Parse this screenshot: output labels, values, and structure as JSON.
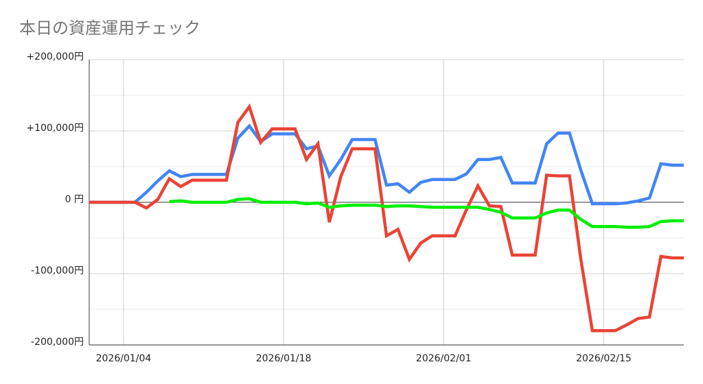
{
  "chart_data": {
    "type": "line",
    "title": "本日の資産運用チェック",
    "x": [
      "2026/01/01",
      "2026/01/02",
      "2026/01/03",
      "2026/01/04",
      "2026/01/05",
      "2026/01/06",
      "2026/01/07",
      "2026/01/08",
      "2026/01/09",
      "2026/01/10",
      "2026/01/11",
      "2026/01/12",
      "2026/01/13",
      "2026/01/14",
      "2026/01/15",
      "2026/01/16",
      "2026/01/17",
      "2026/01/18",
      "2026/01/19",
      "2026/01/20",
      "2026/01/21",
      "2026/01/22",
      "2026/01/23",
      "2026/01/24",
      "2026/01/25",
      "2026/01/26",
      "2026/01/27",
      "2026/01/28",
      "2026/01/29",
      "2026/01/30",
      "2026/01/31",
      "2026/02/01",
      "2026/02/02",
      "2026/02/03",
      "2026/02/04",
      "2026/02/05",
      "2026/02/06",
      "2026/02/07",
      "2026/02/08",
      "2026/02/09",
      "2026/02/10",
      "2026/02/11",
      "2026/02/12",
      "2026/02/13",
      "2026/02/14",
      "2026/02/15",
      "2026/02/16",
      "2026/02/17",
      "2026/02/18",
      "2026/02/19",
      "2026/02/20",
      "2026/02/21",
      "2026/02/22"
    ],
    "xticks": [
      "2026/01/04",
      "2026/01/18",
      "2026/02/01",
      "2026/02/15"
    ],
    "series": [
      {
        "color": "#4285f4",
        "values": [
          0,
          0,
          0,
          0,
          0,
          14000,
          30000,
          44000,
          36000,
          39000,
          39000,
          39000,
          39000,
          90000,
          107000,
          85000,
          96000,
          96000,
          96000,
          75000,
          79000,
          37000,
          60000,
          88000,
          88000,
          88000,
          24000,
          26000,
          14000,
          28000,
          32000,
          32000,
          32000,
          40000,
          60000,
          60000,
          63000,
          27000,
          27000,
          27000,
          82000,
          97000,
          97000,
          45000,
          -2000,
          -2000,
          -2000,
          -1000,
          2000,
          6000,
          54000,
          52000,
          52000
        ]
      },
      {
        "color": "#ea4335",
        "values": [
          0,
          0,
          0,
          0,
          0,
          -8000,
          4000,
          33000,
          22000,
          31000,
          31000,
          31000,
          31000,
          112000,
          134000,
          84000,
          103000,
          103000,
          103000,
          60000,
          82000,
          -28000,
          36000,
          75000,
          75000,
          75000,
          -47000,
          -38000,
          -80000,
          -57000,
          -47000,
          -47000,
          -47000,
          -10000,
          23000,
          -5000,
          -6000,
          -74000,
          -74000,
          -74000,
          38000,
          37000,
          37000,
          -80000,
          -180000,
          -180000,
          -180000,
          -172000,
          -163000,
          -161000,
          -76000,
          -78000,
          -78000
        ]
      },
      {
        "color": "#00ee00",
        "values": [
          null,
          null,
          null,
          null,
          null,
          null,
          null,
          1000,
          2000,
          0,
          0,
          0,
          0,
          4000,
          5000,
          0,
          0,
          0,
          0,
          -2000,
          -1000,
          -7000,
          -5000,
          -4000,
          -4000,
          -4000,
          -6000,
          -5000,
          -5000,
          -6000,
          -7000,
          -7000,
          -7000,
          -7000,
          -7000,
          -10000,
          -14000,
          -22000,
          -22000,
          -22000,
          -15000,
          -11000,
          -11000,
          -24000,
          -34000,
          -34000,
          -34000,
          -35000,
          -35000,
          -34000,
          -27000,
          -26000,
          -26000
        ]
      }
    ],
    "ylim": [
      -200000,
      200000
    ],
    "yticks": [
      {
        "value": 200000,
        "label": "+200,000円"
      },
      {
        "value": 100000,
        "label": "+100,000円"
      },
      {
        "value": 0,
        "label": "0 円"
      },
      {
        "value": -100000,
        "label": "-100,000円"
      },
      {
        "value": -200000,
        "label": "-200,000円"
      }
    ],
    "minor_yticks": [
      150000,
      50000,
      -50000,
      -150000
    ],
    "grid": true
  }
}
